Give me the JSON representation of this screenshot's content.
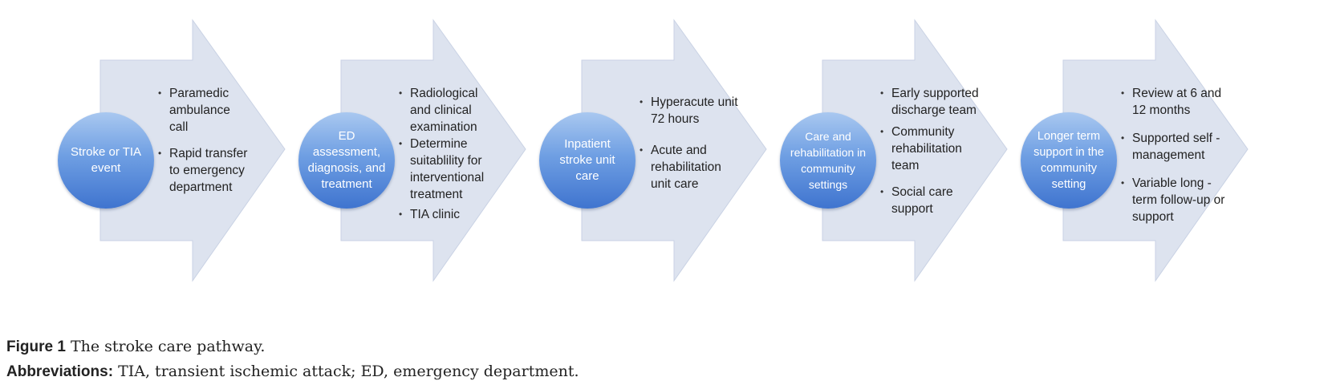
{
  "stages": [
    {
      "circle": "Stroke or TIA event",
      "bullets": [
        "Paramedic ambulance call",
        "Rapid transfer to emergency department"
      ]
    },
    {
      "circle": "ED assessment, diagnosis, and treatment",
      "bullets": [
        "Radiological and clinical examination",
        "Determine suitablility for interventional treatment",
        "TIA clinic"
      ]
    },
    {
      "circle": "Inpatient stroke unit care",
      "bullets": [
        "Hyperacute unit 72 hours",
        "Acute and rehabilitation unit care"
      ]
    },
    {
      "circle": "Care and rehabilitation in community settings",
      "bullets": [
        "Early supported discharge team",
        "Community rehabilitation team",
        "Social care support"
      ]
    },
    {
      "circle": "Longer term support in the community setting",
      "bullets": [
        "Review at 6 and 12 months",
        "Supported self -management",
        "Variable long -term follow-up or support"
      ]
    }
  ],
  "caption": {
    "figure_label": "Figure 1",
    "figure_text": "The stroke care pathway.",
    "abbr_label": "Abbreviations:",
    "abbr_text": "TIA, transient ischemic attack; ED, emergency department."
  },
  "colors": {
    "arrow_fill": "#dde3ef",
    "arrow_edge": "#c9d2e4"
  }
}
